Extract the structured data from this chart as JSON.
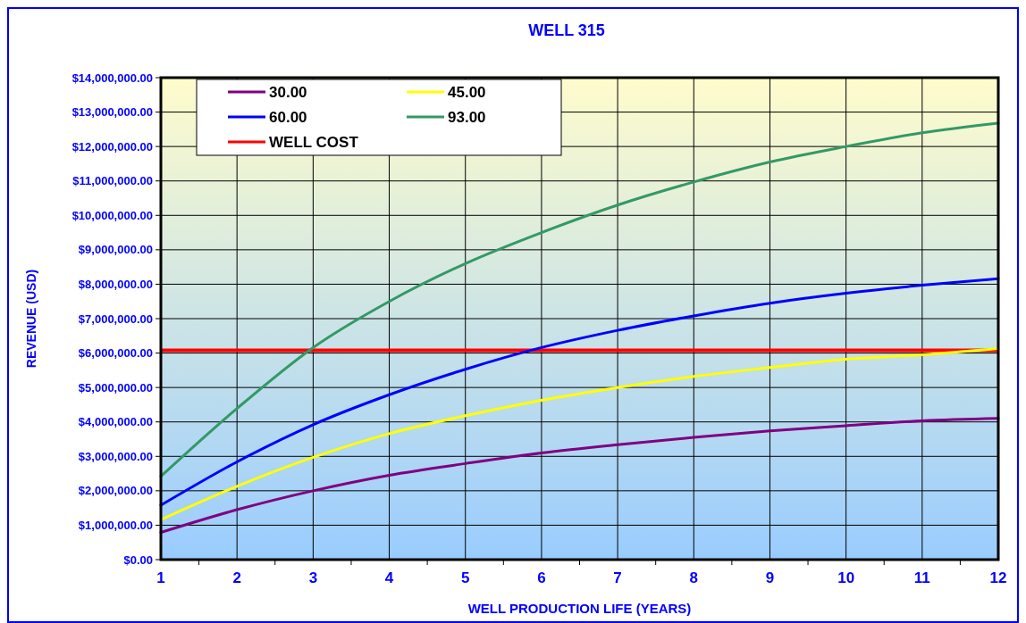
{
  "chart_data": {
    "type": "line",
    "title": "WELL 315",
    "xlabel": "WELL PRODUCTION LIFE (YEARS)",
    "ylabel": "REVENUE (USD)",
    "x": [
      1,
      2,
      3,
      4,
      5,
      6,
      7,
      8,
      9,
      10,
      11,
      12
    ],
    "series": [
      {
        "name": "30.00",
        "color": "#800080",
        "values": [
          790000,
          1450000,
          2000000,
          2450000,
          2790000,
          3100000,
          3340000,
          3550000,
          3740000,
          3890000,
          4030000,
          4100000
        ]
      },
      {
        "name": "45.00",
        "color": "#ffff00",
        "values": [
          1160000,
          2130000,
          2970000,
          3660000,
          4180000,
          4630000,
          5000000,
          5320000,
          5580000,
          5820000,
          5950000,
          6130000
        ]
      },
      {
        "name": "60.00",
        "color": "#0000ff",
        "values": [
          1580000,
          2840000,
          3920000,
          4790000,
          5530000,
          6160000,
          6660000,
          7080000,
          7450000,
          7740000,
          7970000,
          8160000
        ]
      },
      {
        "name": "93.00",
        "color": "#339966",
        "values": [
          2420000,
          4390000,
          6160000,
          7500000,
          8600000,
          9500000,
          10300000,
          10970000,
          11550000,
          12000000,
          12400000,
          12680000
        ]
      }
    ],
    "ref_lines": [
      {
        "axis": "y",
        "value": 6080000,
        "label": "WELL COST",
        "color": "#ff0000"
      }
    ],
    "xlim": [
      1,
      12
    ],
    "xticks": [
      1,
      {
        "value": 1.5,
        "label": null
      },
      2,
      {
        "value": 2.5,
        "label": null
      },
      3,
      {
        "value": 3.5,
        "label": null
      },
      4,
      {
        "value": 4.5,
        "label": null
      },
      5,
      {
        "value": 5.5,
        "label": null
      },
      6,
      {
        "value": 6.5,
        "label": null
      },
      7,
      {
        "value": 7.5,
        "label": null
      },
      8,
      {
        "value": 8.5,
        "label": null
      },
      9,
      {
        "value": 9.5,
        "label": null
      },
      10,
      {
        "value": 10.5,
        "label": null
      },
      11,
      {
        "value": 11.5,
        "label": null
      },
      12
    ],
    "ylim": [
      0,
      14000000
    ],
    "yticks": [
      {
        "value": 0,
        "label": "$0.00"
      },
      {
        "value": 1000000,
        "label": "$1,000,000.00"
      },
      {
        "value": 2000000,
        "label": "$2,000,000.00"
      },
      {
        "value": 3000000,
        "label": "$3,000,000.00"
      },
      {
        "value": 4000000,
        "label": "$4,000,000.00"
      },
      {
        "value": 5000000,
        "label": "$5,000,000.00"
      },
      {
        "value": 6000000,
        "label": "$6,000,000.00"
      },
      {
        "value": 7000000,
        "label": "$7,000,000.00"
      },
      {
        "value": 8000000,
        "label": "$8,000,000.00"
      },
      {
        "value": 9000000,
        "label": "$9,000,000.00"
      },
      {
        "value": 10000000,
        "label": "$10,000,000.00"
      },
      {
        "value": 11000000,
        "label": "$11,000,000.00"
      },
      {
        "value": 12000000,
        "label": "$12,000,000.00"
      },
      {
        "value": 13000000,
        "label": "$13,000,000.00"
      },
      {
        "value": 14000000,
        "label": "$14,000,000.00"
      }
    ],
    "grid": true,
    "legend": "top left",
    "marker": "none",
    "line_style": "solid"
  }
}
